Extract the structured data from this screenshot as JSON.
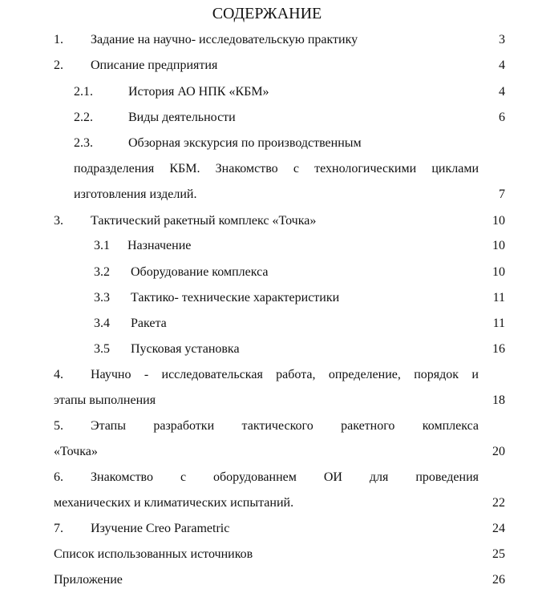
{
  "title": "СОДЕРЖАНИЕ",
  "entries": [
    {
      "num": "1.",
      "lines": [
        "Задание на научно- исследовательскую практику"
      ],
      "page": "3"
    },
    {
      "num": "2.",
      "lines": [
        "Описание предприятия"
      ],
      "page": "4"
    },
    {
      "num": "2.1.",
      "lines": [
        "История АО НПК «КБМ»"
      ],
      "page": "4"
    },
    {
      "num": "2.2.",
      "lines": [
        "Виды деятельности"
      ],
      "page": "6"
    },
    {
      "num": "2.3.",
      "lines": [
        "Обзорная экскурсия по производственным",
        "подразделения КБМ. Знакомство с технологическими циклами",
        "изготовления изделий."
      ],
      "page": "7"
    },
    {
      "num": "3.",
      "lines": [
        "Тактический ракетный комплекс «Точка»"
      ],
      "page": "10"
    },
    {
      "num": "3.1",
      "lines": [
        "Назначение"
      ],
      "page": "10"
    },
    {
      "num": "3.2",
      "lines": [
        "Оборудование комплекса"
      ],
      "page": "10"
    },
    {
      "num": "3.3",
      "lines": [
        "Тактико- технические характеристики"
      ],
      "page": "11"
    },
    {
      "num": "3.4",
      "lines": [
        "Ракета"
      ],
      "page": "11"
    },
    {
      "num": "3.5",
      "lines": [
        "Пусковая установка"
      ],
      "page": "16"
    },
    {
      "num": "4.",
      "lines": [
        "Научно - исследовательская работа, определение, порядок и",
        "этапы выполнения"
      ],
      "page": "18"
    },
    {
      "num": "5.",
      "lines": [
        "Этапы разработки тактического ракетного комплекса",
        "«Точка»"
      ],
      "page": "20"
    },
    {
      "num": "6.",
      "lines": [
        "Знакомство с оборудованнем ОИ для проведения",
        "механических и климатических испытаний."
      ],
      "page": "22"
    },
    {
      "num": "7.",
      "lines": [
        "Изучение Creo Parametric"
      ],
      "page": "24"
    },
    {
      "num": "",
      "lines": [
        "Список использованных источников"
      ],
      "page": "25"
    },
    {
      "num": "",
      "lines": [
        "Приложение"
      ],
      "page": "26"
    }
  ]
}
